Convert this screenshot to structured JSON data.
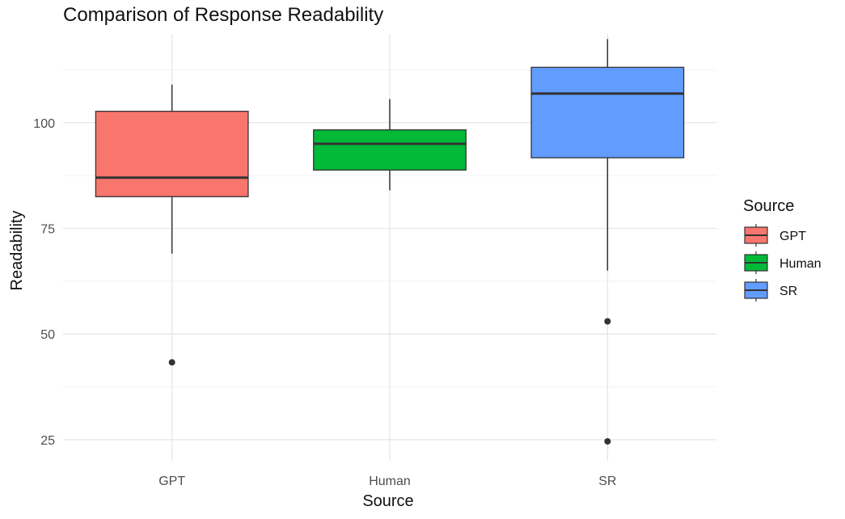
{
  "chart_data": {
    "type": "box",
    "title": "Comparison of Response Readability",
    "xlabel": "Source",
    "ylabel": "Readability",
    "categories": [
      "GPT",
      "Human",
      "SR"
    ],
    "yticks": [
      25,
      50,
      75,
      100
    ],
    "ylim": [
      20,
      121
    ],
    "grid": true,
    "legend": {
      "title": "Source",
      "position": "right",
      "entries": [
        "GPT",
        "Human",
        "SR"
      ]
    },
    "colors": {
      "GPT": "#F8766D",
      "Human": "#00BA38",
      "SR": "#619CFF"
    },
    "boxes": [
      {
        "category": "GPT",
        "whisker_low": 69,
        "q1": 82.5,
        "median": 87,
        "q3": 102.7,
        "whisker_high": 109,
        "outliers": [
          43.3
        ]
      },
      {
        "category": "Human",
        "whisker_low": 84,
        "q1": 88.8,
        "median": 95,
        "q3": 98.3,
        "whisker_high": 105.6,
        "outliers": []
      },
      {
        "category": "SR",
        "whisker_low": 65,
        "q1": 91.7,
        "median": 106.9,
        "q3": 113.1,
        "whisker_high": 119.8,
        "outliers": [
          53,
          24.6
        ]
      }
    ]
  }
}
